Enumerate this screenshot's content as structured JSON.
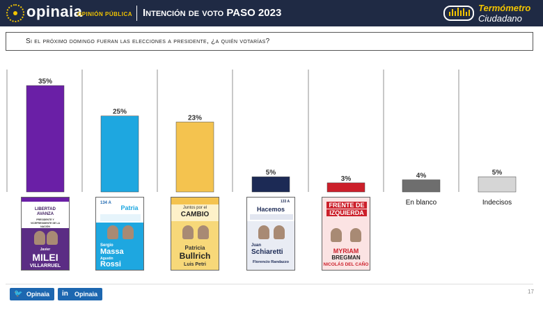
{
  "header": {
    "brand": "opinaia",
    "brand_sub": "OPINIÓN PÚBLICA",
    "title": "Intención de voto PASO 2023",
    "badge_line1": "Termómetro",
    "badge_line2": "Ciudadano"
  },
  "question": "Si el próximo domingo fueran las elecciones a presidente, ¿a quién votarías?",
  "chart_data": {
    "type": "bar",
    "title": "",
    "xlabel": "",
    "ylabel": "",
    "ylim": [
      0,
      35
    ],
    "categories": [
      "La Libertad Avanza",
      "Unión por la Patria",
      "Juntos por el Cambio",
      "Hacemos por Nuestro País",
      "Frente de Izquierda",
      "En blanco",
      "Indecisos"
    ],
    "values": [
      35,
      25,
      23,
      5,
      3,
      4,
      5
    ],
    "value_labels": [
      "35%",
      "25%",
      "23%",
      "5%",
      "3%",
      "4%",
      "5%"
    ],
    "colors": [
      "#6a1fa6",
      "#1ea7e0",
      "#f4c34f",
      "#1c2a55",
      "#cc1f2a",
      "#6e6e6e",
      "#d6d6d6"
    ],
    "grid": false,
    "legend": "none"
  },
  "cards": {
    "milei": {
      "party_line1": "LIBERTAD",
      "party_line2": "AVANZA",
      "role": "PRESIDENTE Y VICEPRESIDENTE DE LA NACIÓN",
      "first": "Javier",
      "name": "MILEI",
      "vice": "VILLARRUEL"
    },
    "massa": {
      "list": "134 A",
      "party": "Patria",
      "first": "Sergio",
      "name": "Massa",
      "vice_first": "Agustín",
      "vice": "Rossi"
    },
    "bullrich": {
      "party_line1": "Juntos por el",
      "party_line2": "CAMBIO",
      "first": "Patricia",
      "name": "Bullrich",
      "vice": "Luis Petri"
    },
    "schiaretti": {
      "list": "133 A",
      "party": "Hacemos",
      "first": "Juan",
      "name": "Schiaretti",
      "vice": "Florencio Randazzo"
    },
    "bregman": {
      "party_line1": "FRENTE DE",
      "party_line2": "IZQUIERDA",
      "name": "MYRIAM",
      "name2": "BREGMAN",
      "vice": "NICOLÁS DEL CAÑO"
    }
  },
  "labels": {
    "blank": "En blanco",
    "undecided": "Indecisos"
  },
  "footer": {
    "twitter": "Opinaia",
    "linkedin": "Opinaia",
    "twitter_icon": "twitter-bird-icon",
    "linkedin_icon": "linkedin-icon",
    "page": "17"
  }
}
